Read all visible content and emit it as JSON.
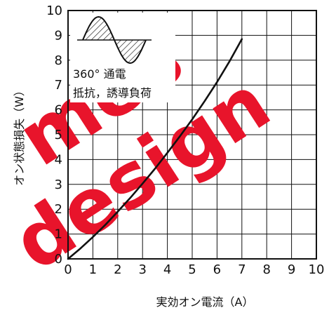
{
  "chart_data": {
    "type": "line",
    "xlabel": "実効オン電流（A）",
    "ylabel": "オン状態損失（W）",
    "xlim": [
      0,
      10
    ],
    "ylim": [
      0,
      10
    ],
    "x_ticks": [
      "0",
      "1",
      "2",
      "3",
      "4",
      "5",
      "6",
      "7",
      "8",
      "9",
      "10"
    ],
    "y_ticks": [
      "0",
      "1",
      "2",
      "3",
      "4",
      "5",
      "6",
      "7",
      "8",
      "9",
      "10"
    ],
    "grid": true,
    "series": [
      {
        "x": [
          0,
          0.5,
          1,
          1.5,
          2,
          2.5,
          3,
          3.5,
          4,
          4.5,
          5,
          5.5,
          6,
          6.5,
          7
        ],
        "y": [
          0,
          0.42,
          0.88,
          1.37,
          1.9,
          2.45,
          3.03,
          3.63,
          4.27,
          4.93,
          5.62,
          6.35,
          7.12,
          7.95,
          8.85
        ],
        "color": "#111111"
      }
    ],
    "annotations": [
      "360° 通電",
      "抵抗，誘導負荷"
    ],
    "inset_icon": "full-wave-sine-shaded-icon"
  },
  "watermark": {
    "lines": [
      "mes",
      "design"
    ],
    "color": "#e8142b"
  }
}
